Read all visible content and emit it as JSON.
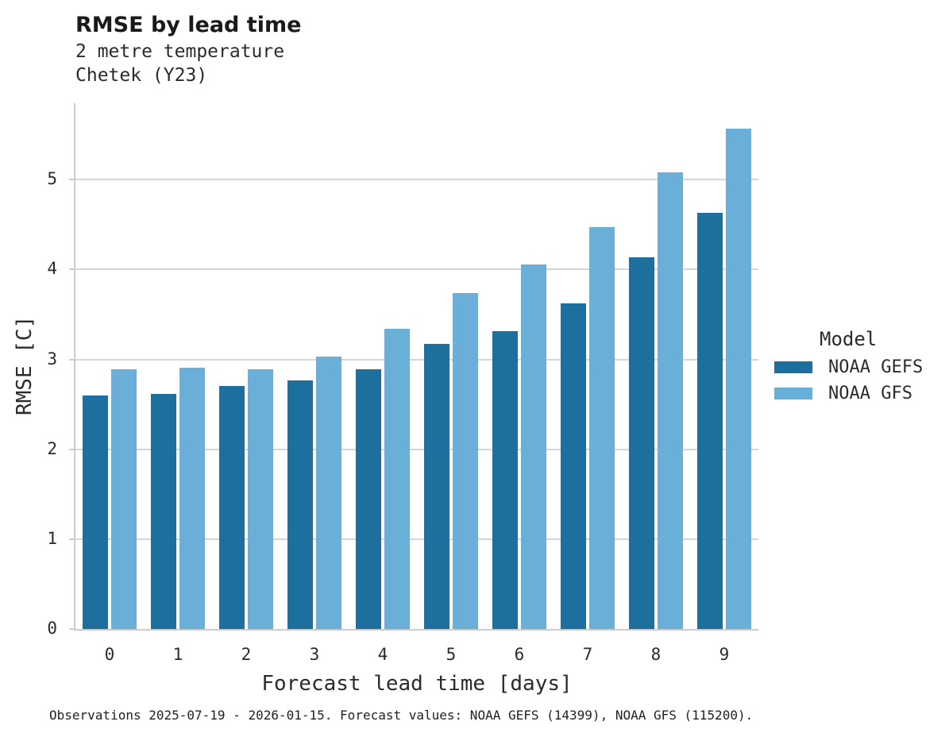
{
  "header": {
    "title": "RMSE by lead time",
    "subtitle_line1": "2 metre temperature",
    "subtitle_line2": "Chetek (Y23)"
  },
  "chart_data": {
    "type": "bar",
    "title": "RMSE by lead time",
    "subtitle": [
      "2 metre temperature",
      "Chetek (Y23)"
    ],
    "xlabel": "Forecast lead time [days]",
    "ylabel": "RMSE [C]",
    "categories": [
      "0",
      "1",
      "2",
      "3",
      "4",
      "5",
      "6",
      "7",
      "8",
      "9"
    ],
    "series": [
      {
        "name": "NOAA GEFS",
        "color": "#1d6f9e",
        "values": [
          2.6,
          2.62,
          2.7,
          2.77,
          2.89,
          3.17,
          3.31,
          3.62,
          4.14,
          4.63
        ]
      },
      {
        "name": "NOAA GFS",
        "color": "#69afd7",
        "values": [
          2.89,
          2.91,
          2.89,
          3.03,
          3.34,
          3.74,
          4.06,
          4.47,
          5.08,
          5.57
        ]
      }
    ],
    "ylim": [
      0,
      5.85
    ],
    "yticks": [
      "0",
      "1",
      "2",
      "3",
      "4",
      "5"
    ],
    "grid": "horizontal-only",
    "legend_title": "Model",
    "legend_position": "right-center"
  },
  "colors": {
    "series_dark": "#1d6f9e",
    "series_light": "#69afd7",
    "gridline": "#d5d5d5",
    "spine": "#cccccc",
    "text": "#2b2b2b"
  },
  "legend": {
    "title": "Model",
    "items": [
      {
        "label": "NOAA GEFS",
        "color": "#1d6f9e"
      },
      {
        "label": "NOAA GFS",
        "color": "#69afd7"
      }
    ]
  },
  "footer": {
    "caption": "Observations 2025-07-19 - 2026-01-15. Forecast values: NOAA GEFS (14399), NOAA GFS (115200)."
  }
}
